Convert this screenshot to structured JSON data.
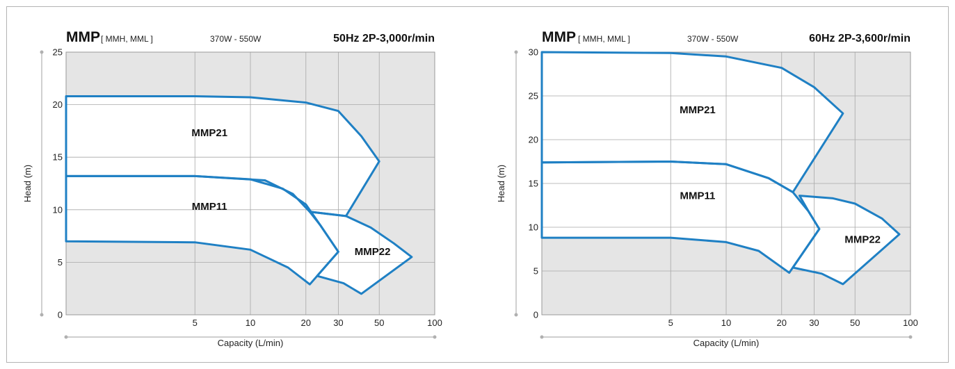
{
  "chart_data": [
    {
      "type": "area",
      "title": "MMP",
      "subtitle": "[ MMH, MML ]",
      "power_range": "370W - 550W",
      "frequency_label": "50Hz 2P-3,000r/min",
      "xlabel": "Capacity (L/min)",
      "ylabel": "Head (m)",
      "x_scale": "log",
      "xlim": [
        1,
        100
      ],
      "ylim": [
        0,
        25
      ],
      "x_ticks": [
        5,
        10,
        20,
        30,
        50,
        100
      ],
      "y_ticks": [
        0,
        5,
        10,
        15,
        20,
        25
      ],
      "grid": true,
      "accent_color": "#1f80c4",
      "background_color": "#e5e5e5",
      "regions": [
        {
          "name": "MMP21",
          "label_at": {
            "x": 6,
            "y": 17
          },
          "boundary": [
            [
              1,
              20.8
            ],
            [
              5,
              20.8
            ],
            [
              10,
              20.7
            ],
            [
              20,
              20.2
            ],
            [
              30,
              19.4
            ],
            [
              40,
              17.0
            ],
            [
              50,
              14.6
            ],
            [
              33,
              9.4
            ],
            [
              21,
              9.8
            ],
            [
              17,
              11.5
            ],
            [
              12,
              12.8
            ],
            [
              5,
              13.2
            ],
            [
              1,
              13.2
            ]
          ]
        },
        {
          "name": "MMP11",
          "label_at": {
            "x": 6,
            "y": 10
          },
          "boundary": [
            [
              1,
              13.2
            ],
            [
              5,
              13.2
            ],
            [
              10,
              12.9
            ],
            [
              15,
              12.0
            ],
            [
              20,
              10.5
            ],
            [
              24,
              8.5
            ],
            [
              30,
              6.0
            ],
            [
              21,
              2.9
            ],
            [
              16,
              4.5
            ],
            [
              10,
              6.2
            ],
            [
              5,
              6.9
            ],
            [
              1,
              7.0
            ]
          ]
        },
        {
          "name": "MMP22",
          "label_at": {
            "x": 46,
            "y": 5.7
          },
          "boundary": [
            [
              21,
              9.8
            ],
            [
              33,
              9.4
            ],
            [
              45,
              8.3
            ],
            [
              60,
              6.8
            ],
            [
              75,
              5.5
            ],
            [
              40,
              2.0
            ],
            [
              32,
              3.0
            ],
            [
              23,
              3.7
            ],
            [
              30,
              6.0
            ],
            [
              24,
              8.5
            ]
          ]
        }
      ]
    },
    {
      "type": "area",
      "title": "MMP",
      "subtitle": "[ MMH, MML ]",
      "power_range": "370W - 550W",
      "frequency_label": "60Hz 2P-3,600r/min",
      "xlabel": "Capacity (L/min)",
      "ylabel": "Head (m)",
      "x_scale": "log",
      "xlim": [
        1,
        100
      ],
      "ylim": [
        0,
        30
      ],
      "x_ticks": [
        5,
        10,
        20,
        30,
        50,
        100
      ],
      "y_ticks": [
        0,
        5,
        10,
        15,
        20,
        25,
        30
      ],
      "grid": true,
      "accent_color": "#1f80c4",
      "background_color": "#e5e5e5",
      "regions": [
        {
          "name": "MMP21",
          "label_at": {
            "x": 7,
            "y": 23
          },
          "boundary": [
            [
              1,
              30
            ],
            [
              5,
              29.9
            ],
            [
              10,
              29.5
            ],
            [
              20,
              28.2
            ],
            [
              30,
              26.0
            ],
            [
              43,
              23.0
            ],
            [
              23,
              14.0
            ],
            [
              17,
              15.6
            ],
            [
              10,
              17.2
            ],
            [
              5,
              17.5
            ],
            [
              1,
              17.4
            ]
          ]
        },
        {
          "name": "MMP11",
          "label_at": {
            "x": 7,
            "y": 13.2
          },
          "boundary": [
            [
              1,
              17.4
            ],
            [
              5,
              17.5
            ],
            [
              10,
              17.2
            ],
            [
              17,
              15.6
            ],
            [
              23,
              14.0
            ],
            [
              28,
              11.8
            ],
            [
              32,
              9.8
            ],
            [
              22,
              4.8
            ],
            [
              15,
              7.3
            ],
            [
              10,
              8.3
            ],
            [
              5,
              8.8
            ],
            [
              1,
              8.8
            ]
          ]
        },
        {
          "name": "MMP22",
          "label_at": {
            "x": 55,
            "y": 8.2
          },
          "boundary": [
            [
              25,
              13.6
            ],
            [
              38,
              13.3
            ],
            [
              50,
              12.7
            ],
            [
              70,
              11.0
            ],
            [
              87,
              9.2
            ],
            [
              43,
              3.5
            ],
            [
              33,
              4.7
            ],
            [
              23,
              5.4
            ],
            [
              32,
              9.8
            ],
            [
              28,
              11.8
            ]
          ]
        }
      ]
    }
  ]
}
